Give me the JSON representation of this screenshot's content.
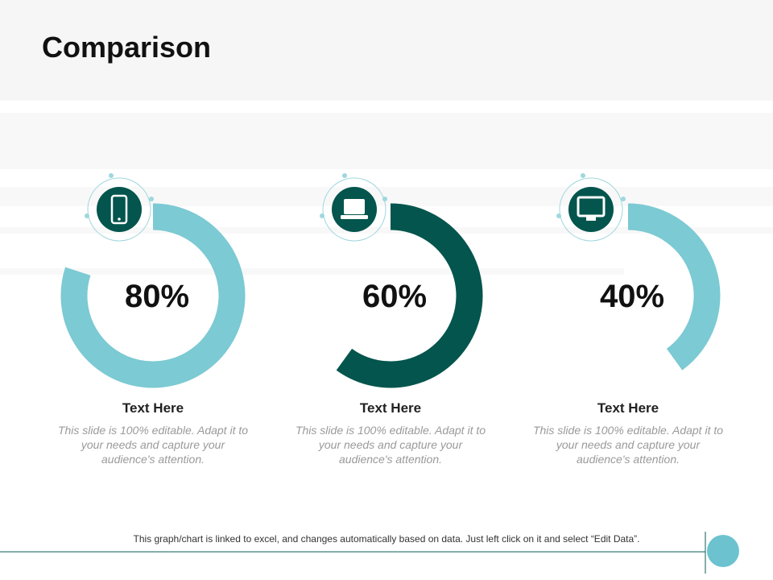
{
  "header": {
    "title": "Comparison"
  },
  "chart_data": [
    {
      "type": "donut",
      "values": [
        80
      ],
      "value_labels": [
        "80%"
      ],
      "ylim": [
        0,
        100
      ],
      "color": "#7ccad3",
      "label": "Text Here",
      "description": "This slide is 100% editable. Adapt it to your needs and capture your audience's attention."
    },
    {
      "type": "donut",
      "values": [
        60
      ],
      "value_labels": [
        "60%"
      ],
      "ylim": [
        0,
        100
      ],
      "color": "#03554d",
      "label": "Text Here",
      "description": "This slide is 100% editable. Adapt it to your needs and capture your audience's attention."
    },
    {
      "type": "donut",
      "values": [
        40
      ],
      "value_labels": [
        "40%"
      ],
      "ylim": [
        0,
        100
      ],
      "color": "#7ccad3",
      "label": "Text Here",
      "description": "This slide is 100% editable. Adapt it to your needs and capture your audience's attention."
    }
  ],
  "footer": {
    "note": "This graph/chart is linked to excel, and changes automatically based on data. Just left click on it and select “Edit Data”."
  }
}
